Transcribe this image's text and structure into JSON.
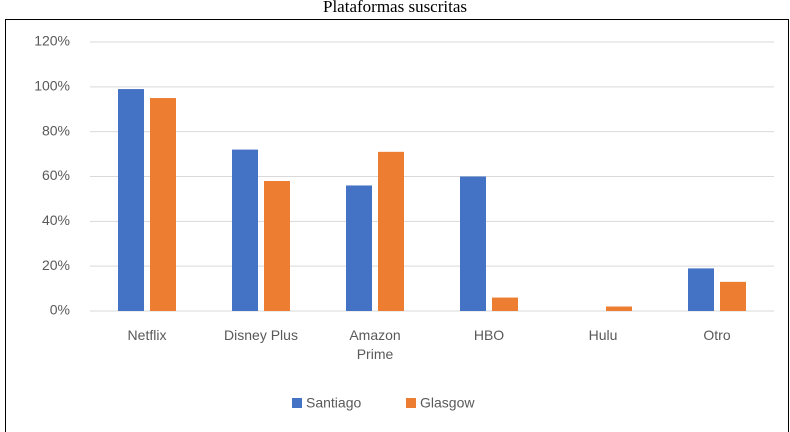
{
  "chart_data": {
    "type": "bar",
    "title": "Plataformas suscritas",
    "categories": [
      "Netflix",
      "Disney Plus",
      "Amazon Prime",
      "HBO",
      "Hulu",
      "Otro"
    ],
    "series": [
      {
        "name": "Santiago",
        "color": "#4472c4",
        "values": [
          99,
          72,
          56,
          60,
          0,
          19
        ]
      },
      {
        "name": "Glasgow",
        "color": "#ed7d31",
        "values": [
          95,
          58,
          71,
          6,
          2,
          13
        ]
      }
    ],
    "ylim": [
      0,
      120
    ],
    "yticks": [
      {
        "value": 0,
        "label": "0%"
      },
      {
        "value": 20,
        "label": "20%"
      },
      {
        "value": 40,
        "label": "40%"
      },
      {
        "value": 60,
        "label": "60%"
      },
      {
        "value": 80,
        "label": "80%"
      },
      {
        "value": 100,
        "label": "100%"
      },
      {
        "value": 120,
        "label": "120%"
      }
    ],
    "grid": true,
    "legend": "bottom"
  }
}
